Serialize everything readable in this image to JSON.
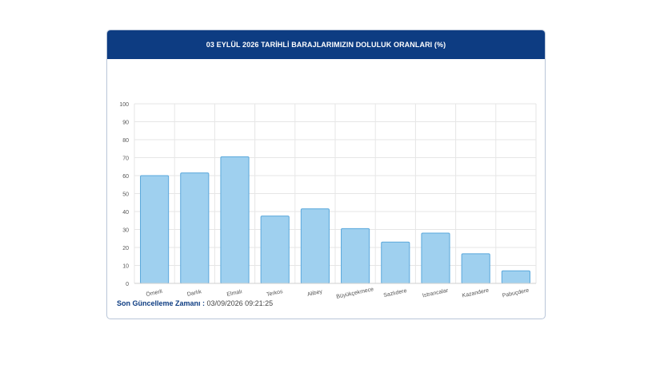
{
  "header": {
    "title": "03 EYLÜL 2026 TARİHLİ BARAJLARIMIZIN DOLULUK ORANLARI (%)"
  },
  "footer": {
    "label": "Son Güncelleme Zamanı :",
    "value": "03/09/2026 09:21:25"
  },
  "colors": {
    "header_bg": "#0d3c82",
    "bar_fill": "#9fd0ef",
    "bar_stroke": "#5aa8dc"
  },
  "chart_data": {
    "type": "bar",
    "categories": [
      "Ömerli",
      "Darlık",
      "Elmalı",
      "Terkos",
      "Alibey",
      "Büyükçekmece",
      "Sazlıdere",
      "Istrancalar",
      "Kazandere",
      "Pabuçdere"
    ],
    "values": [
      60,
      61.5,
      70.5,
      37.5,
      41.5,
      30.5,
      23,
      28,
      16.5,
      7
    ],
    "ylim": [
      0,
      100
    ],
    "yticks": [
      0,
      10,
      20,
      30,
      40,
      50,
      60,
      70,
      80,
      90,
      100
    ],
    "grid": true,
    "legend": "none"
  }
}
